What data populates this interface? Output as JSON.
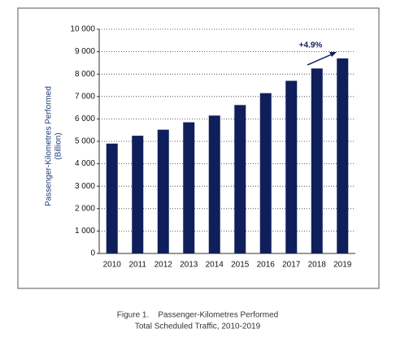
{
  "chart_data": {
    "type": "bar",
    "y_label": [
      "Passenger-Kilometres Performed",
      "(Billion)"
    ],
    "annotation": "+4.9%",
    "caption": [
      "Figure 1.    Passenger-Kilometres Performed",
      "Total Scheduled Traffic, 2010-2019"
    ],
    "categories": [
      "2010",
      "2011",
      "2012",
      "2013",
      "2014",
      "2015",
      "2016",
      "2017",
      "2018",
      "2019"
    ],
    "values": [
      4900,
      5250,
      5520,
      5850,
      6150,
      6620,
      7150,
      7700,
      8250,
      8700
    ],
    "color": "#0f1f5c",
    "ylim": [
      0,
      10000
    ],
    "yticks": [
      0,
      {
        "value": 1000,
        "label": "1 000"
      },
      {
        "value": 2000,
        "label": "2 000"
      },
      {
        "value": 3000,
        "label": "3 000"
      },
      {
        "value": 4000,
        "label": "4 000"
      },
      {
        "value": 5000,
        "label": "5 000"
      },
      {
        "value": 6000,
        "label": "6 000"
      },
      {
        "value": 7000,
        "label": "7 000"
      },
      {
        "value": 8000,
        "label": "8 000"
      },
      {
        "value": 9000,
        "label": "9 000"
      },
      {
        "value": 10000,
        "label": "10 000"
      }
    ],
    "grid": true
  }
}
